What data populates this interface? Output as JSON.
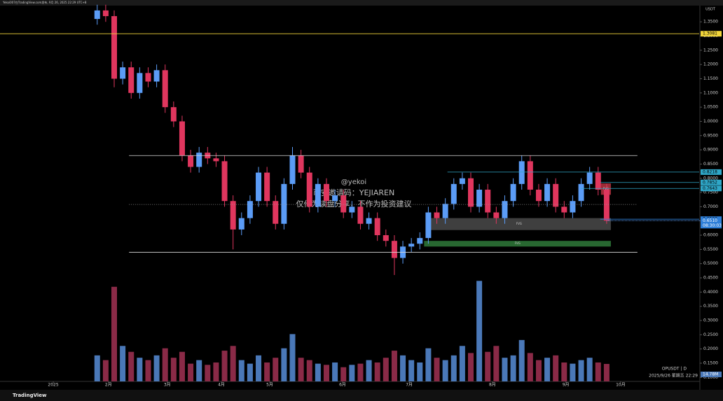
{
  "header": "Yekoi007在TradingView.com发布, 9月 26, 2025 22:29 UTC+8",
  "footer": "TradingView",
  "chart_data": {
    "type": "candlestick",
    "symbol": "OPUSDT | D",
    "timestamp": "2025/9/26 星期五 22:29",
    "currency": "USDT",
    "up_color": "#5b9cf6",
    "down_color": "#e0365e",
    "volume_up_color": "#4a78b8",
    "volume_down_color": "#8a2a47",
    "x": [
      27,
      31,
      35,
      39,
      43,
      47,
      51,
      55,
      59,
      63,
      67,
      71,
      75,
      79,
      83,
      87,
      91,
      95,
      99,
      103,
      107,
      111,
      115,
      119,
      123,
      127,
      131,
      135,
      139,
      143,
      147,
      151,
      155,
      159,
      163,
      167,
      171,
      175,
      179,
      183,
      187,
      191,
      195,
      199,
      203,
      207,
      211,
      215,
      219,
      223,
      227,
      231,
      235,
      239,
      243,
      247,
      251,
      255,
      259,
      263,
      267
    ],
    "open": [
      1.36,
      1.39,
      1.37,
      1.15,
      1.19,
      1.1,
      1.17,
      1.14,
      1.18,
      1.05,
      1.0,
      0.88,
      0.84,
      0.89,
      0.87,
      0.86,
      0.72,
      0.62,
      0.66,
      0.72,
      0.82,
      0.72,
      0.64,
      0.78,
      0.88,
      0.82,
      0.7,
      0.78,
      0.72,
      0.74,
      0.68,
      0.7,
      0.64,
      0.66,
      0.6,
      0.58,
      0.52,
      0.56,
      0.57,
      0.59,
      0.68,
      0.66,
      0.71,
      0.78,
      0.8,
      0.7,
      0.76,
      0.68,
      0.66,
      0.72,
      0.78,
      0.86,
      0.76,
      0.72,
      0.78,
      0.7,
      0.68,
      0.72,
      0.78,
      0.82,
      0.76
    ],
    "high": [
      1.41,
      1.41,
      1.39,
      1.21,
      1.21,
      1.19,
      1.19,
      1.2,
      1.2,
      1.07,
      1.02,
      0.9,
      0.91,
      0.91,
      0.89,
      0.88,
      0.74,
      0.68,
      0.74,
      0.84,
      0.84,
      0.74,
      0.8,
      0.91,
      0.9,
      0.84,
      0.8,
      0.8,
      0.76,
      0.76,
      0.72,
      0.72,
      0.68,
      0.68,
      0.62,
      0.6,
      0.58,
      0.59,
      0.61,
      0.7,
      0.7,
      0.73,
      0.8,
      0.82,
      0.82,
      0.78,
      0.78,
      0.7,
      0.74,
      0.8,
      0.88,
      0.88,
      0.78,
      0.8,
      0.8,
      0.72,
      0.74,
      0.8,
      0.84,
      0.84,
      0.78
    ],
    "low": [
      1.34,
      1.35,
      1.12,
      1.13,
      1.08,
      1.08,
      1.12,
      1.12,
      1.03,
      0.98,
      0.86,
      0.82,
      0.82,
      0.85,
      0.84,
      0.7,
      0.55,
      0.6,
      0.64,
      0.7,
      0.7,
      0.62,
      0.62,
      0.76,
      0.8,
      0.68,
      0.68,
      0.7,
      0.7,
      0.66,
      0.66,
      0.62,
      0.62,
      0.58,
      0.56,
      0.46,
      0.5,
      0.54,
      0.55,
      0.57,
      0.64,
      0.64,
      0.69,
      0.76,
      0.68,
      0.68,
      0.66,
      0.64,
      0.64,
      0.7,
      0.76,
      0.74,
      0.7,
      0.7,
      0.68,
      0.66,
      0.66,
      0.7,
      0.76,
      0.74,
      0.64
    ],
    "close": [
      1.39,
      1.37,
      1.15,
      1.19,
      1.1,
      1.17,
      1.14,
      1.18,
      1.05,
      1.0,
      0.88,
      0.84,
      0.89,
      0.87,
      0.86,
      0.72,
      0.62,
      0.66,
      0.72,
      0.82,
      0.72,
      0.64,
      0.78,
      0.88,
      0.82,
      0.7,
      0.78,
      0.72,
      0.74,
      0.68,
      0.7,
      0.64,
      0.66,
      0.6,
      0.58,
      0.52,
      0.56,
      0.57,
      0.59,
      0.68,
      0.66,
      0.71,
      0.78,
      0.8,
      0.7,
      0.76,
      0.68,
      0.66,
      0.72,
      0.78,
      0.86,
      0.76,
      0.72,
      0.78,
      0.7,
      0.68,
      0.72,
      0.78,
      0.82,
      0.76,
      0.651
    ],
    "volume": [
      22,
      18,
      80,
      30,
      25,
      20,
      18,
      22,
      28,
      20,
      25,
      15,
      18,
      14,
      16,
      26,
      30,
      18,
      15,
      22,
      16,
      20,
      28,
      40,
      20,
      18,
      15,
      14,
      16,
      12,
      14,
      15,
      18,
      16,
      20,
      26,
      22,
      18,
      16,
      28,
      20,
      18,
      22,
      30,
      24,
      85,
      25,
      30,
      20,
      22,
      35,
      24,
      18,
      20,
      22,
      16,
      15,
      18,
      20,
      16,
      14.78
    ],
    "volume_last_label": "14.78M",
    "close_last_label": "0.6510",
    "countdown": "08:30:03",
    "xlim": [
      -18.8,
      310.6
    ],
    "ylim": [
      0.086,
      1.407
    ],
    "xticks": [
      {
        "value": 6.3,
        "label": "2025"
      },
      {
        "value": 32.3,
        "label": "2月"
      },
      {
        "value": 60,
        "label": "3月"
      },
      {
        "value": 85.5,
        "label": "4月"
      },
      {
        "value": 108.3,
        "label": "5月"
      },
      {
        "value": 142.6,
        "label": "6月"
      },
      {
        "value": 174,
        "label": "7月"
      },
      {
        "value": 213.2,
        "label": "8月"
      },
      {
        "value": 247.8,
        "label": "9月"
      },
      {
        "value": 273.6,
        "label": "10月"
      }
    ],
    "yticks": [
      {
        "value": 1.35,
        "label": "1.3500"
      },
      {
        "value": 1.3,
        "label": "1.3000"
      },
      {
        "value": 1.25,
        "label": "1.2500"
      },
      {
        "value": 1.2,
        "label": "1.2000"
      },
      {
        "value": 1.15,
        "label": "1.1500"
      },
      {
        "value": 1.1,
        "label": "1.1000"
      },
      {
        "value": 1.05,
        "label": "1.0500"
      },
      {
        "value": 1.0,
        "label": "1.0000"
      },
      {
        "value": 0.95,
        "label": "0.9500"
      },
      {
        "value": 0.9,
        "label": "0.9000"
      },
      {
        "value": 0.85,
        "label": "0.8500"
      },
      {
        "value": 0.8,
        "label": "0.8000"
      },
      {
        "value": 0.75,
        "label": "0.7500"
      },
      {
        "value": 0.7,
        "label": "0.7000"
      },
      {
        "value": 0.65,
        "label": "0.6500"
      },
      {
        "value": 0.6,
        "label": "0.6000"
      },
      {
        "value": 0.55,
        "label": "0.5500"
      },
      {
        "value": 0.5,
        "label": "0.5000"
      },
      {
        "value": 0.45,
        "label": "0.4500"
      },
      {
        "value": 0.4,
        "label": "0.4000"
      },
      {
        "value": 0.35,
        "label": "0.3500"
      },
      {
        "value": 0.3,
        "label": "0.3000"
      },
      {
        "value": 0.25,
        "label": "0.2500"
      },
      {
        "value": 0.2,
        "label": "0.2000"
      },
      {
        "value": 0.15,
        "label": "0.1500"
      },
      {
        "value": 0.1,
        "label": "0.1000"
      }
    ],
    "levels": [
      {
        "value": 1.3081,
        "label": "1.3081",
        "color": "#f0d43a",
        "from": -18.8,
        "to": 310.6
      },
      {
        "value": 0.88,
        "color": "#d8d8d8",
        "from": 42,
        "to": 281.5
      },
      {
        "value": 0.54,
        "color": "#d8d8d8",
        "from": 42,
        "to": 281.5
      },
      {
        "value": 0.708,
        "color": "#9a9a9a",
        "style": "dotted",
        "from": 42,
        "to": 281.5
      },
      {
        "value": 0.8218,
        "label": "0.8218",
        "color": "#2fa7c8",
        "from": 192,
        "to": 310.6
      },
      {
        "value": 0.7852,
        "label": "0.7852",
        "color": "#2fa7c8",
        "from": 264,
        "to": 310.6
      },
      {
        "value": 0.7643,
        "label": "0.7643",
        "color": "#2fa7c8",
        "from": 255,
        "to": 310.6
      },
      {
        "value": 0.6563,
        "label": "0.6563",
        "color": "#2f7fd8",
        "from": 264,
        "to": 310.6
      }
    ],
    "zones": [
      {
        "low": 0.618,
        "high": 0.66,
        "from": 182.5,
        "to": 269,
        "label": "FVG",
        "color": "#4a4a4a"
      },
      {
        "low": 0.56,
        "high": 0.58,
        "from": 181,
        "to": 269,
        "label": "FVG",
        "color": "#2f7a3a"
      },
      {
        "low": 0.742,
        "high": 0.782,
        "from": 264.3,
        "to": 269,
        "label": "FVG",
        "color": "#b8323f"
      }
    ],
    "watermark": [
      "@yekoi",
      "币安邀请码：YEJIAREN",
      "仅作为读盘分享，不作为投资建议"
    ]
  }
}
